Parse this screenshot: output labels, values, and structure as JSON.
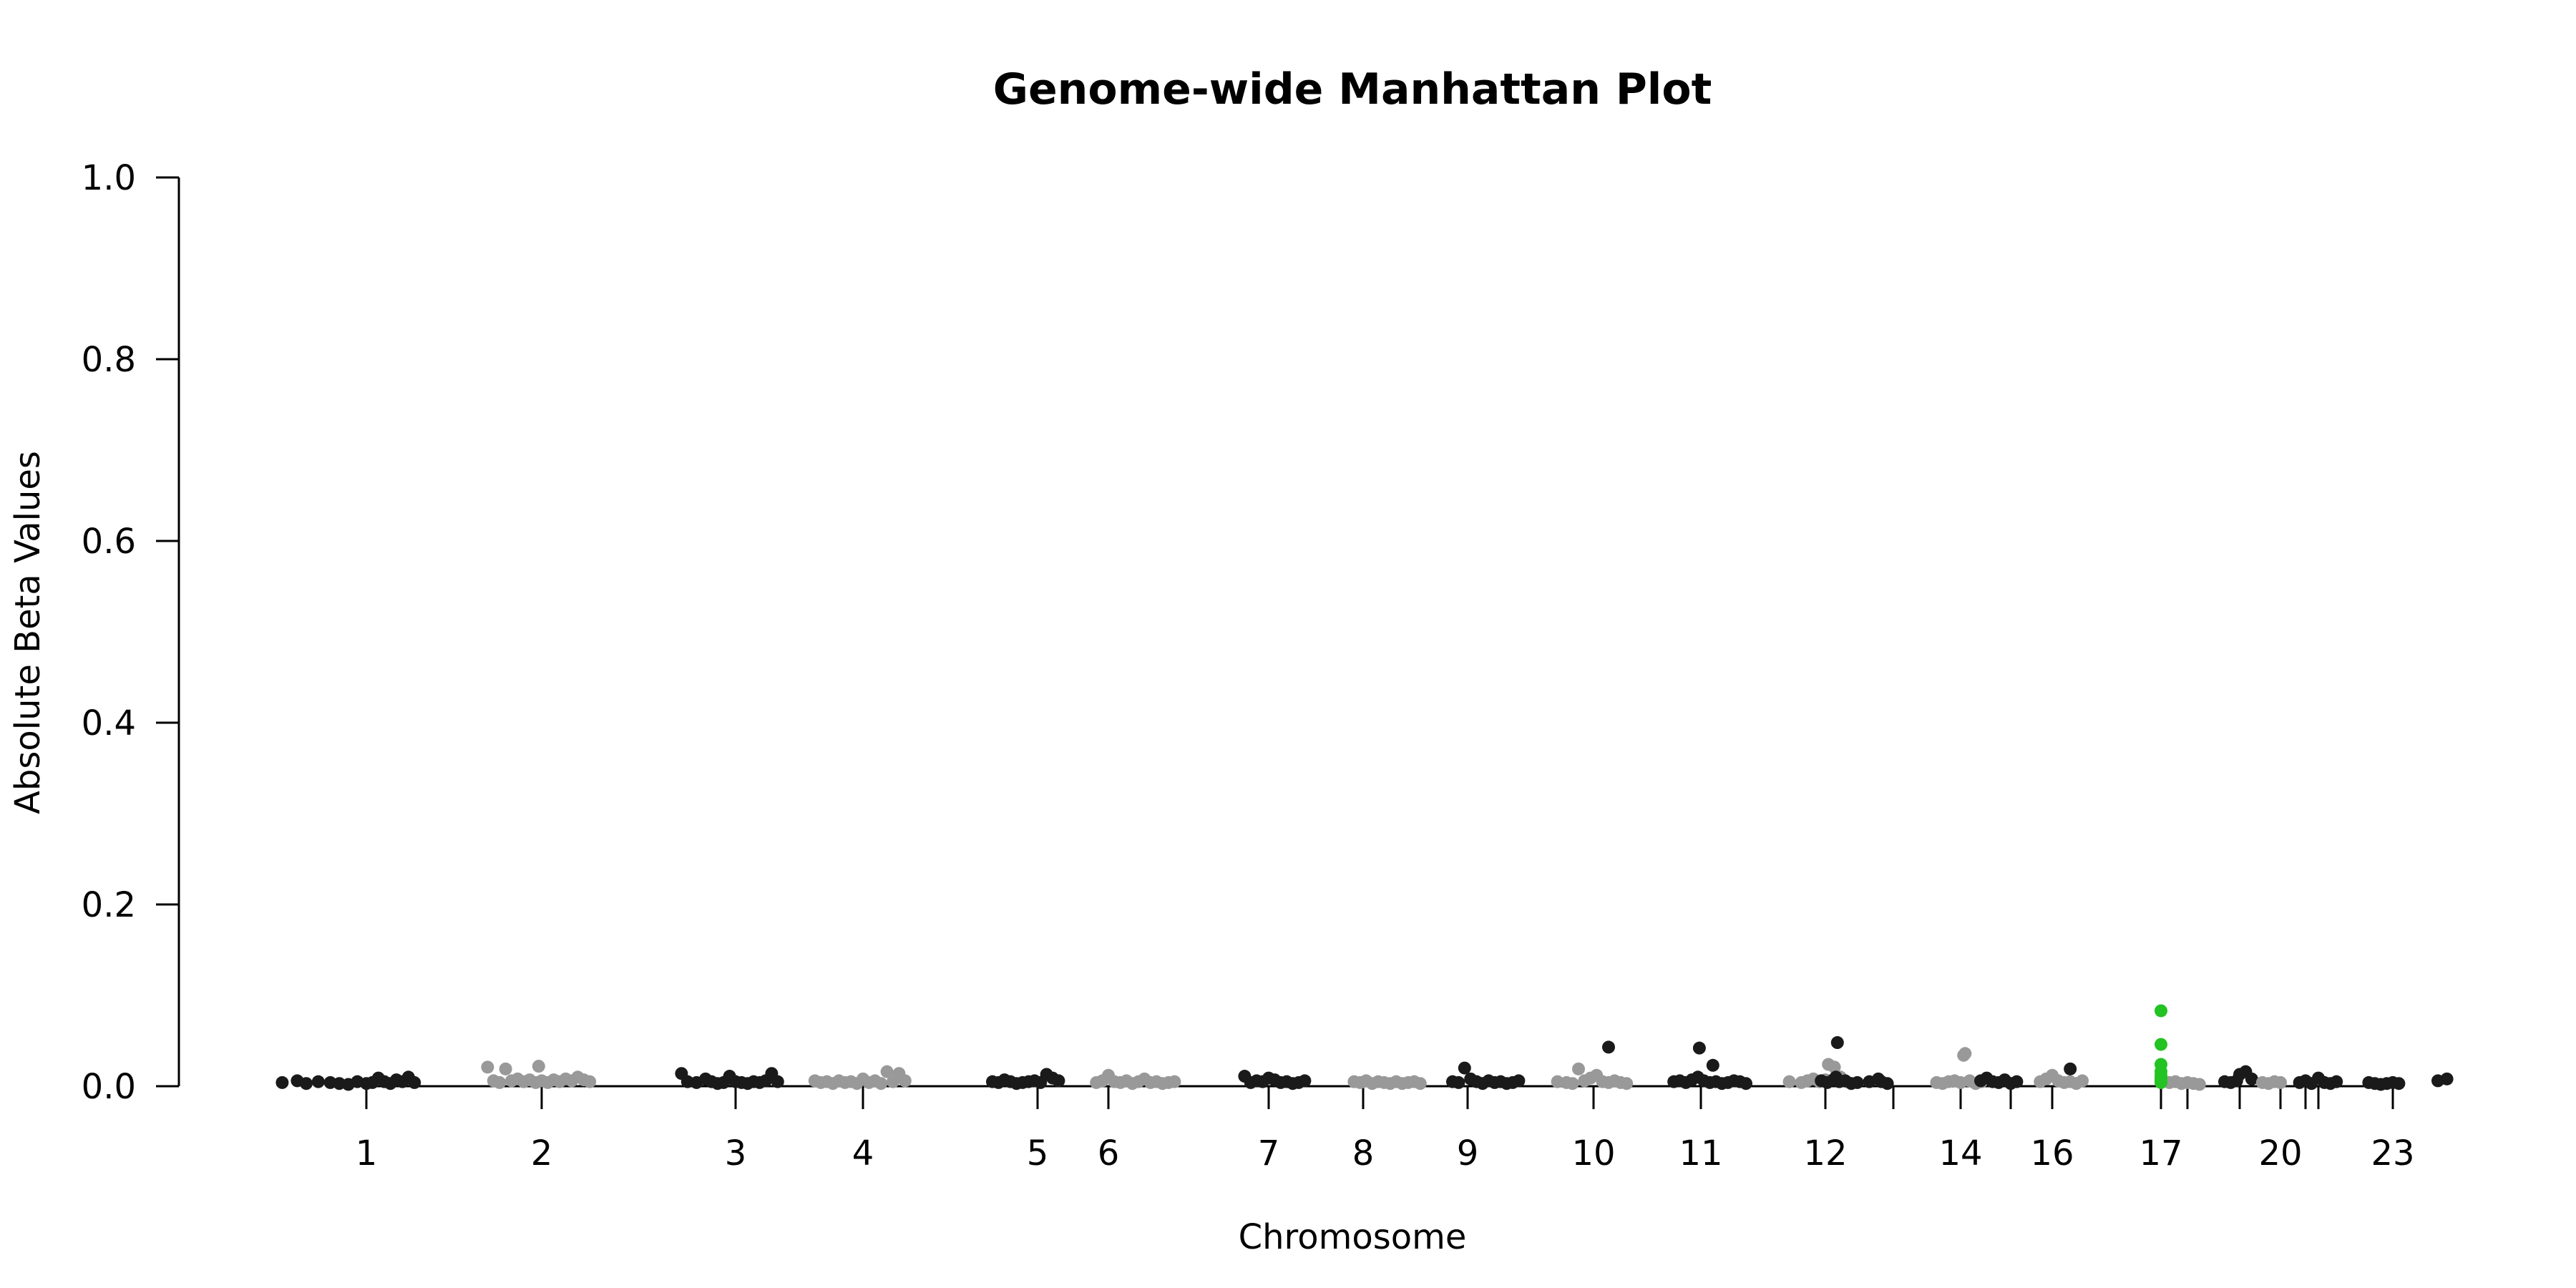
{
  "chart_data": {
    "type": "scatter",
    "title": "Genome-wide Manhattan Plot",
    "xlabel": "Chromosome",
    "ylabel": "Absolute Beta Values",
    "ylim": [
      0,
      1
    ],
    "y_ticks": [
      "0.0",
      "0.2",
      "0.4",
      "0.6",
      "0.8",
      "1.0"
    ],
    "x_tick_labels": [
      "1",
      "2",
      "3",
      "4",
      "5",
      "6",
      "7",
      "8",
      "9",
      "10",
      "11",
      "12",
      "14",
      "16",
      "17",
      "20",
      "23"
    ],
    "x_ticks": [
      1,
      2,
      3,
      4,
      5,
      6,
      7,
      8,
      9,
      10,
      11,
      12,
      13,
      14,
      15,
      16,
      17,
      18,
      19,
      20,
      21,
      22,
      23
    ],
    "grid": false,
    "legend": "none",
    "colors": {
      "odd": "#1a1a1a",
      "even": "#999999",
      "highlight": "#22c322"
    },
    "highlight_chromosome": 17,
    "series": [
      {
        "chromosome": 1,
        "color": "odd",
        "points": [
          [
            -2.8,
            0.004
          ],
          [
            -2.3,
            0.006
          ],
          [
            -2.0,
            0.003
          ],
          [
            -1.6,
            0.005
          ],
          [
            -1.2,
            0.004
          ],
          [
            -0.9,
            0.003
          ],
          [
            -0.6,
            0.002
          ],
          [
            -0.3,
            0.005
          ],
          [
            0.0,
            0.003
          ],
          [
            0.2,
            0.004
          ],
          [
            0.4,
            0.009
          ],
          [
            0.6,
            0.005
          ],
          [
            0.8,
            0.003
          ],
          [
            1.0,
            0.007
          ],
          [
            1.2,
            0.005
          ],
          [
            1.4,
            0.01
          ],
          [
            1.6,
            0.004
          ]
        ]
      },
      {
        "chromosome": 2,
        "color": "even",
        "points": [
          [
            -1.8,
            0.021
          ],
          [
            -1.6,
            0.006
          ],
          [
            -1.4,
            0.004
          ],
          [
            -1.2,
            0.019
          ],
          [
            -1.0,
            0.006
          ],
          [
            -0.8,
            0.008
          ],
          [
            -0.6,
            0.005
          ],
          [
            -0.4,
            0.007
          ],
          [
            -0.2,
            0.004
          ],
          [
            -0.1,
            0.022
          ],
          [
            0.0,
            0.006
          ],
          [
            0.2,
            0.004
          ],
          [
            0.4,
            0.007
          ],
          [
            0.6,
            0.005
          ],
          [
            0.8,
            0.008
          ],
          [
            1.0,
            0.006
          ],
          [
            1.2,
            0.01
          ],
          [
            1.4,
            0.007
          ],
          [
            1.6,
            0.005
          ]
        ]
      },
      {
        "chromosome": 3,
        "color": "odd",
        "points": [
          [
            -1.8,
            0.014
          ],
          [
            -1.6,
            0.005
          ],
          [
            -1.3,
            0.004
          ],
          [
            -1.0,
            0.008
          ],
          [
            -0.8,
            0.005
          ],
          [
            -0.6,
            0.003
          ],
          [
            -0.4,
            0.004
          ],
          [
            -0.2,
            0.011
          ],
          [
            0.0,
            0.005
          ],
          [
            0.2,
            0.004
          ],
          [
            0.4,
            0.003
          ],
          [
            0.6,
            0.005
          ],
          [
            0.8,
            0.004
          ],
          [
            1.0,
            0.006
          ],
          [
            1.2,
            0.014
          ],
          [
            1.4,
            0.005
          ]
        ]
      },
      {
        "chromosome": 4,
        "color": "even",
        "points": [
          [
            -1.6,
            0.006
          ],
          [
            -1.4,
            0.004
          ],
          [
            -1.2,
            0.005
          ],
          [
            -1.0,
            0.003
          ],
          [
            -0.8,
            0.006
          ],
          [
            -0.6,
            0.004
          ],
          [
            -0.4,
            0.005
          ],
          [
            -0.2,
            0.003
          ],
          [
            0.0,
            0.008
          ],
          [
            0.2,
            0.004
          ],
          [
            0.4,
            0.006
          ],
          [
            0.6,
            0.003
          ],
          [
            0.8,
            0.016
          ],
          [
            1.0,
            0.005
          ],
          [
            1.2,
            0.014
          ],
          [
            1.4,
            0.006
          ]
        ]
      },
      {
        "chromosome": 5,
        "color": "odd",
        "points": [
          [
            -1.5,
            0.005
          ],
          [
            -1.3,
            0.004
          ],
          [
            -1.1,
            0.007
          ],
          [
            -0.9,
            0.005
          ],
          [
            -0.7,
            0.003
          ],
          [
            -0.5,
            0.004
          ],
          [
            -0.3,
            0.005
          ],
          [
            -0.1,
            0.006
          ],
          [
            0.1,
            0.004
          ],
          [
            0.3,
            0.013
          ],
          [
            0.5,
            0.009
          ],
          [
            0.7,
            0.006
          ]
        ]
      },
      {
        "chromosome": 6,
        "color": "even",
        "points": [
          [
            -0.4,
            0.004
          ],
          [
            -0.2,
            0.006
          ],
          [
            0.0,
            0.012
          ],
          [
            0.2,
            0.005
          ],
          [
            0.4,
            0.004
          ],
          [
            0.6,
            0.006
          ],
          [
            0.8,
            0.003
          ],
          [
            1.0,
            0.005
          ],
          [
            1.2,
            0.008
          ],
          [
            1.4,
            0.004
          ],
          [
            1.6,
            0.005
          ],
          [
            1.8,
            0.003
          ],
          [
            2.0,
            0.004
          ],
          [
            2.2,
            0.005
          ]
        ]
      },
      {
        "chromosome": 7,
        "color": "odd",
        "points": [
          [
            -0.8,
            0.011
          ],
          [
            -0.6,
            0.004
          ],
          [
            -0.4,
            0.006
          ],
          [
            -0.2,
            0.005
          ],
          [
            0.0,
            0.009
          ],
          [
            0.2,
            0.007
          ],
          [
            0.4,
            0.004
          ],
          [
            0.6,
            0.005
          ],
          [
            0.8,
            0.003
          ],
          [
            1.0,
            0.004
          ],
          [
            1.2,
            0.006
          ]
        ]
      },
      {
        "chromosome": 8,
        "color": "even",
        "points": [
          [
            -0.3,
            0.005
          ],
          [
            -0.1,
            0.004
          ],
          [
            0.1,
            0.006
          ],
          [
            0.3,
            0.003
          ],
          [
            0.5,
            0.005
          ],
          [
            0.7,
            0.004
          ],
          [
            0.9,
            0.003
          ],
          [
            1.1,
            0.005
          ],
          [
            1.3,
            0.003
          ],
          [
            1.5,
            0.004
          ],
          [
            1.7,
            0.005
          ],
          [
            1.9,
            0.003
          ]
        ]
      },
      {
        "chromosome": 9,
        "color": "odd",
        "points": [
          [
            -0.5,
            0.005
          ],
          [
            -0.3,
            0.004
          ],
          [
            -0.1,
            0.02
          ],
          [
            0.1,
            0.008
          ],
          [
            0.3,
            0.005
          ],
          [
            0.5,
            0.003
          ],
          [
            0.7,
            0.006
          ],
          [
            0.9,
            0.004
          ],
          [
            1.1,
            0.005
          ],
          [
            1.3,
            0.003
          ],
          [
            1.5,
            0.004
          ],
          [
            1.7,
            0.006
          ]
        ]
      },
      {
        "chromosome": 10,
        "color": "even",
        "points": [
          [
            -1.2,
            0.005
          ],
          [
            -0.9,
            0.004
          ],
          [
            -0.7,
            0.003
          ],
          [
            -0.5,
            0.019
          ],
          [
            -0.3,
            0.006
          ],
          [
            -0.1,
            0.009
          ],
          [
            0.1,
            0.012
          ],
          [
            0.3,
            0.005
          ],
          [
            0.5,
            0.004
          ],
          [
            0.7,
            0.006
          ],
          [
            0.9,
            0.004
          ],
          [
            1.1,
            0.003
          ]
        ]
      },
      {
        "chromosome": 11,
        "color": "odd",
        "points": [
          [
            -0.9,
            0.005
          ],
          [
            -0.7,
            0.006
          ],
          [
            -0.5,
            0.004
          ],
          [
            -0.3,
            0.007
          ],
          [
            -0.1,
            0.01
          ],
          [
            0.1,
            0.006
          ],
          [
            0.3,
            0.004
          ],
          [
            0.5,
            0.005
          ],
          [
            0.7,
            0.003
          ],
          [
            0.9,
            0.004
          ],
          [
            1.1,
            0.006
          ],
          [
            1.3,
            0.005
          ],
          [
            1.5,
            0.003
          ]
        ]
      },
      {
        "chromosome": 12,
        "color": "even",
        "points": [
          [
            -1.2,
            0.005
          ],
          [
            -0.8,
            0.004
          ],
          [
            -0.6,
            0.006
          ],
          [
            -0.4,
            0.008
          ],
          [
            -0.2,
            0.005
          ],
          [
            0.0,
            0.007
          ],
          [
            0.1,
            0.024
          ],
          [
            0.3,
            0.021
          ],
          [
            0.5,
            0.01
          ],
          [
            0.7,
            0.005
          ]
        ]
      },
      {
        "chromosome": 13,
        "color": "odd",
        "points": [
          [
            -2.4,
            0.006
          ],
          [
            -2.2,
            0.004
          ],
          [
            -2.0,
            0.007
          ],
          [
            -1.8,
            0.005
          ],
          [
            -1.6,
            0.006
          ],
          [
            -1.4,
            0.003
          ],
          [
            -1.2,
            0.004
          ],
          [
            -0.8,
            0.005
          ],
          [
            -0.5,
            0.008
          ],
          [
            -0.4,
            0.005
          ],
          [
            -0.2,
            0.003
          ]
        ]
      },
      {
        "chromosome": 14,
        "color": "even",
        "points": [
          [
            -0.8,
            0.004
          ],
          [
            -0.6,
            0.003
          ],
          [
            -0.4,
            0.005
          ],
          [
            -0.2,
            0.006
          ],
          [
            0.0,
            0.004
          ],
          [
            0.1,
            0.034
          ],
          [
            0.15,
            0.036
          ],
          [
            0.3,
            0.006
          ],
          [
            0.5,
            0.003
          ],
          [
            0.7,
            0.005
          ]
        ]
      },
      {
        "chromosome": 15,
        "color": "odd",
        "points": [
          [
            -1.0,
            0.006
          ],
          [
            -0.8,
            0.009
          ],
          [
            -0.6,
            0.005
          ],
          [
            -0.4,
            0.004
          ],
          [
            -0.2,
            0.007
          ],
          [
            0.0,
            0.003
          ],
          [
            0.2,
            0.005
          ]
        ]
      },
      {
        "chromosome": 16,
        "color": "even",
        "points": [
          [
            -0.4,
            0.005
          ],
          [
            -0.2,
            0.008
          ],
          [
            0.0,
            0.012
          ],
          [
            0.2,
            0.006
          ],
          [
            0.4,
            0.004
          ],
          [
            0.6,
            0.005
          ],
          [
            0.8,
            0.003
          ],
          [
            1.0,
            0.006
          ]
        ]
      },
      {
        "chromosome": 17,
        "color": "highlight",
        "points": [
          [
            0,
            0.083
          ],
          [
            0,
            0.046
          ],
          [
            0,
            0.024
          ],
          [
            0,
            0.016
          ],
          [
            0,
            0.012
          ],
          [
            0,
            0.009
          ],
          [
            0,
            0.006
          ],
          [
            0,
            0.004
          ]
        ]
      },
      {
        "chromosome": 18,
        "color": "even",
        "points": [
          [
            -0.6,
            0.004
          ],
          [
            -0.4,
            0.005
          ],
          [
            -0.2,
            0.003
          ],
          [
            0.0,
            0.004
          ],
          [
            0.2,
            0.003
          ],
          [
            0.4,
            0.002
          ]
        ]
      },
      {
        "chromosome": 19,
        "color": "odd",
        "points": [
          [
            -0.5,
            0.005
          ],
          [
            -0.3,
            0.004
          ],
          [
            -0.1,
            0.006
          ],
          [
            0.0,
            0.013
          ],
          [
            0.2,
            0.016
          ],
          [
            0.4,
            0.008
          ]
        ]
      },
      {
        "chromosome": 20,
        "color": "even",
        "points": [
          [
            -0.6,
            0.004
          ],
          [
            -0.4,
            0.003
          ],
          [
            -0.2,
            0.005
          ],
          [
            0.0,
            0.004
          ]
        ]
      },
      {
        "chromosome": 21,
        "color": "odd",
        "points": [
          [
            -0.2,
            0.004
          ],
          [
            0.0,
            0.006
          ],
          [
            0.2,
            0.003
          ]
        ]
      },
      {
        "chromosome": 22,
        "color": "odd",
        "points": [
          [
            0.0,
            0.009
          ],
          [
            0.2,
            0.004
          ],
          [
            0.4,
            0.003
          ],
          [
            0.6,
            0.005
          ]
        ]
      },
      {
        "chromosome": 23,
        "color": "odd",
        "points": [
          [
            -0.8,
            0.004
          ],
          [
            -0.6,
            0.003
          ],
          [
            -0.4,
            0.002
          ],
          [
            -0.2,
            0.003
          ],
          [
            0.0,
            0.004
          ],
          [
            0.2,
            0.003
          ],
          [
            1.5,
            0.006
          ],
          [
            1.8,
            0.008
          ]
        ]
      }
    ],
    "outliers": [
      {
        "chromosome": 10,
        "offset": 0.5,
        "value": 0.043,
        "color": "odd"
      },
      {
        "chromosome": 11,
        "offset": -0.05,
        "value": 0.042,
        "color": "odd"
      },
      {
        "chromosome": 11,
        "offset": 0.4,
        "value": 0.023,
        "color": "odd"
      },
      {
        "chromosome": 12,
        "offset": 0.4,
        "value": 0.048,
        "color": "odd"
      },
      {
        "chromosome": 12,
        "offset": 0.35,
        "value": 0.01,
        "color": "odd"
      },
      {
        "chromosome": 16,
        "offset": 0.6,
        "value": 0.019,
        "color": "odd"
      }
    ]
  }
}
